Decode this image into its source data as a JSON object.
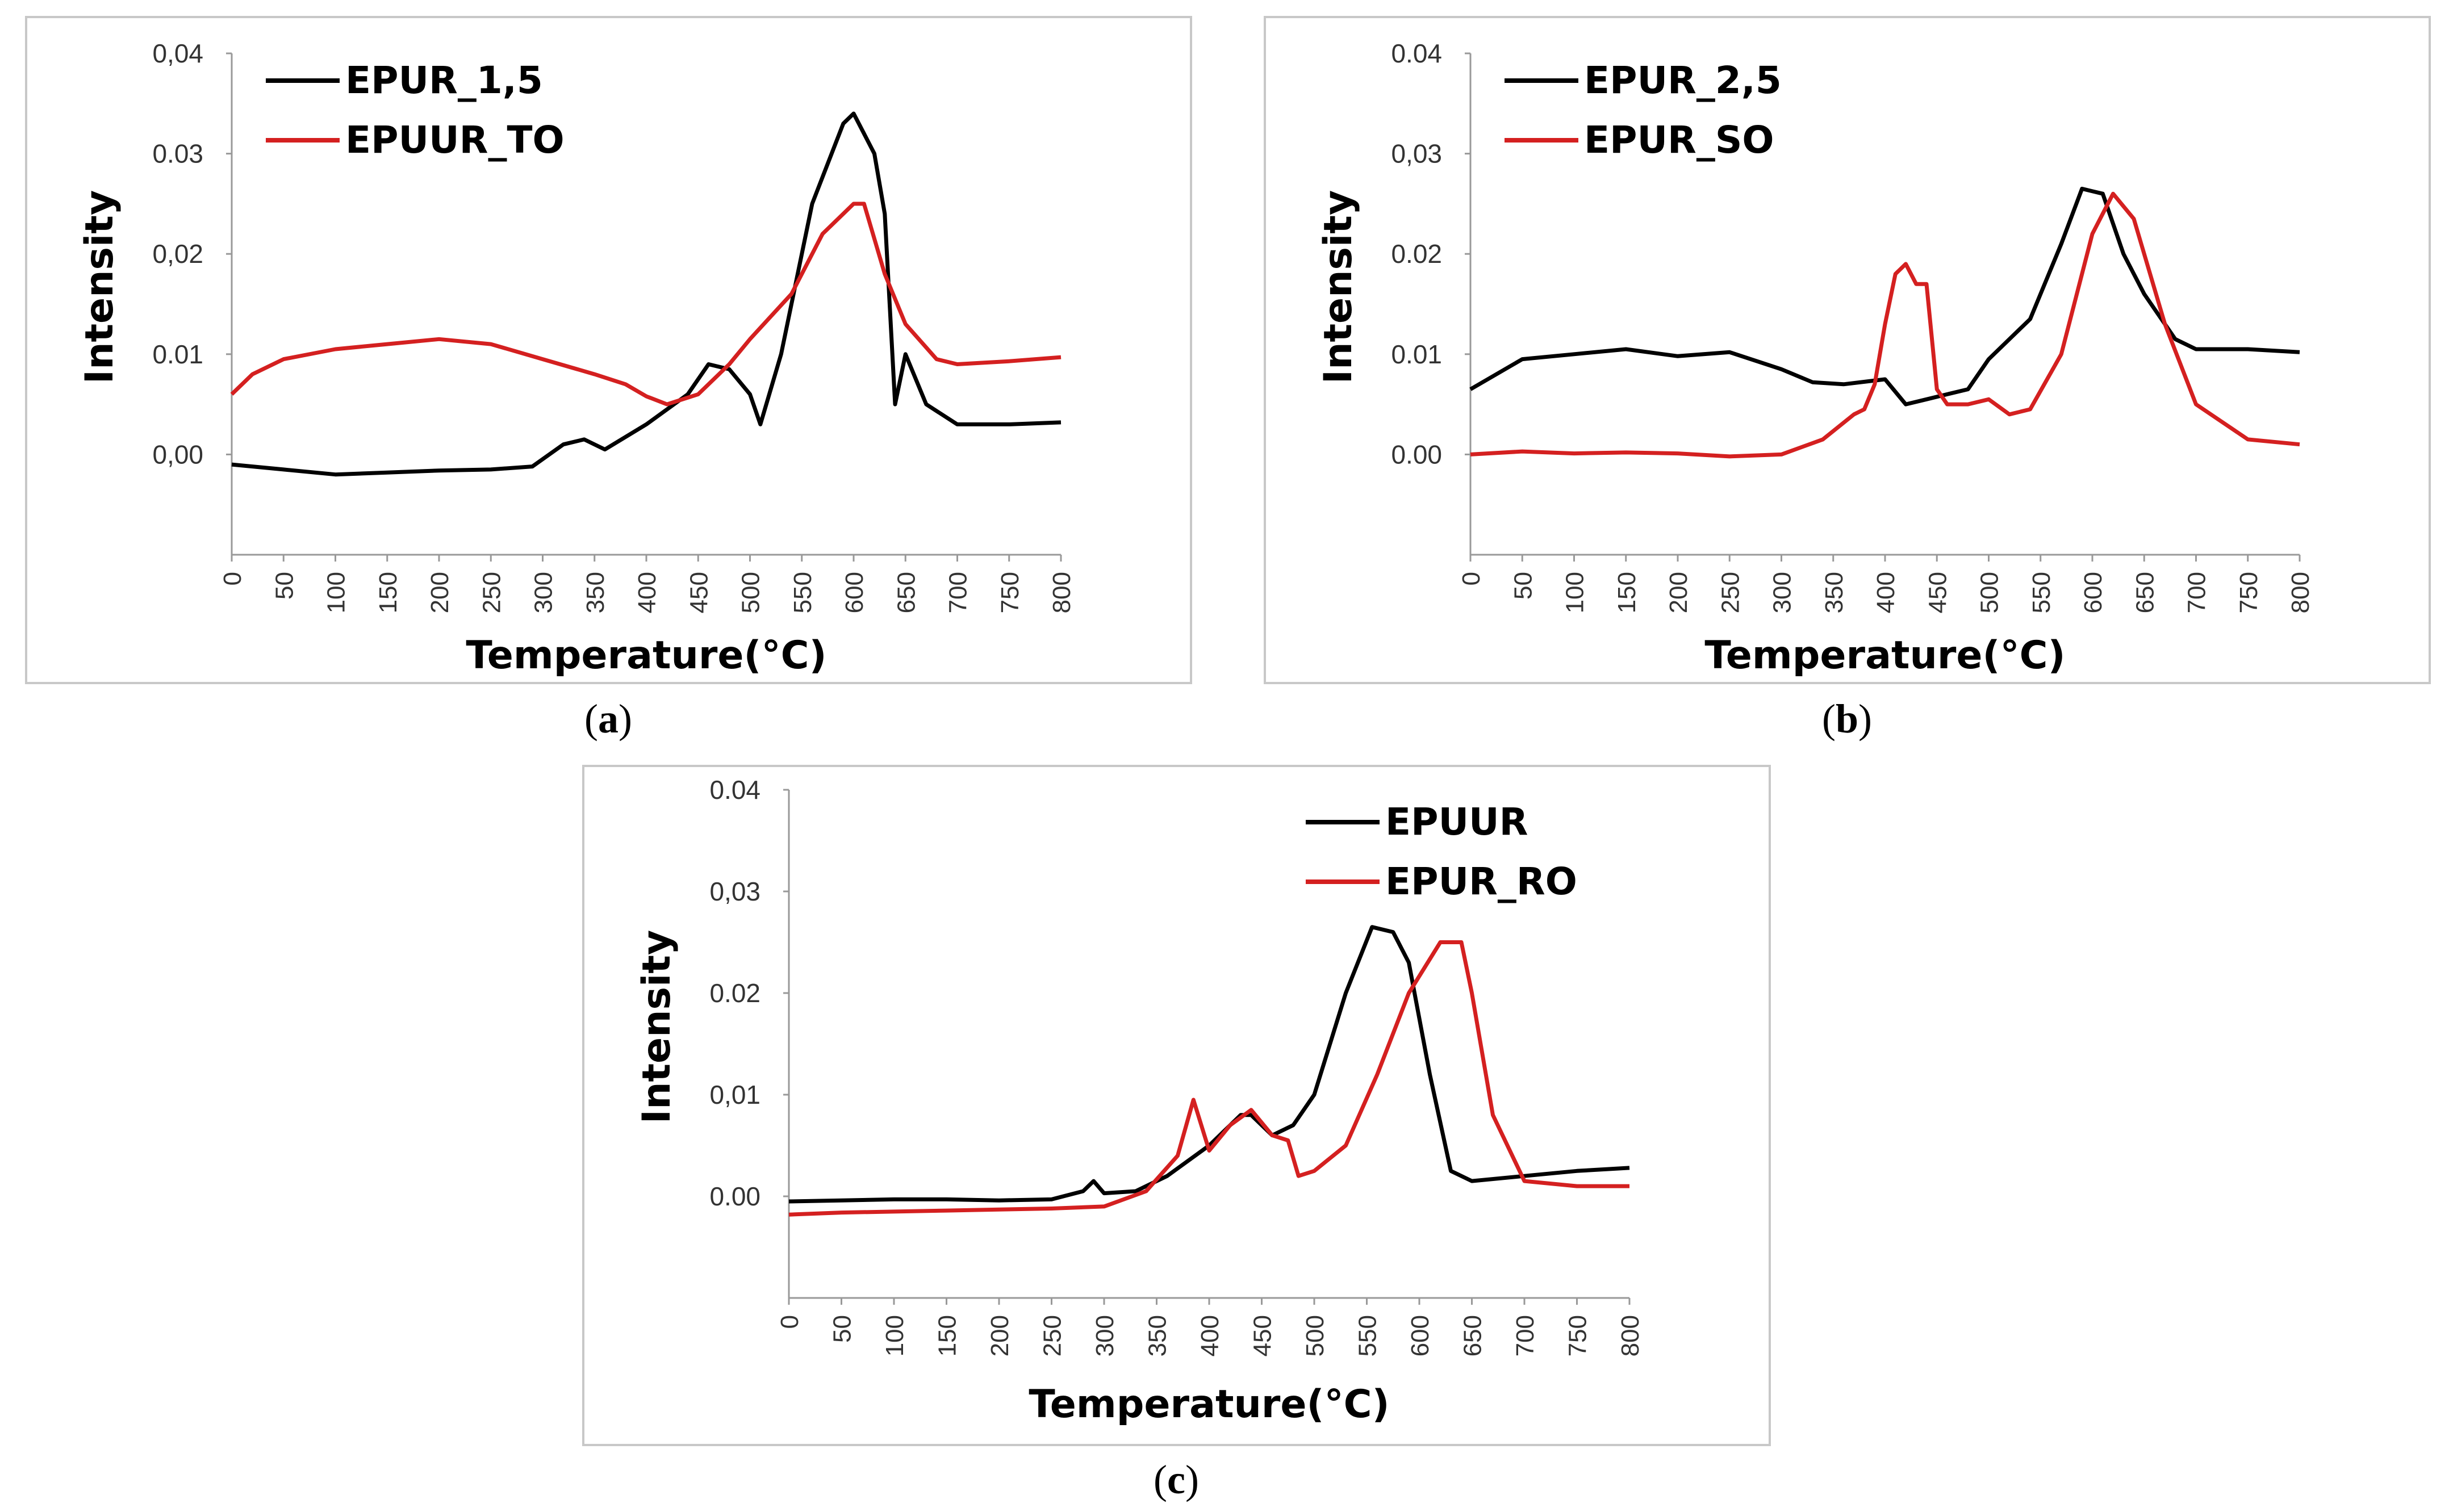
{
  "chart_data": [
    {
      "type": "line",
      "panel_label": "a",
      "xlabel": "Temperature(°C)",
      "ylabel": "Intensity",
      "xlim": [
        0,
        800
      ],
      "ylim": [
        -0.01,
        0.04
      ],
      "x_ticks": [
        0,
        50,
        100,
        150,
        200,
        250,
        300,
        350,
        400,
        450,
        500,
        550,
        600,
        650,
        700,
        750,
        800
      ],
      "y_ticks": [
        0.0,
        0.01,
        0.02,
        0.03,
        0.04
      ],
      "y_tick_labels": [
        "0,00",
        "0.01",
        "0,02",
        "0.03",
        "0,04"
      ],
      "legend_position": "top-left",
      "series": [
        {
          "name": "EPUR_1,5",
          "color": "#000000",
          "x": [
            0,
            50,
            100,
            150,
            200,
            250,
            290,
            320,
            340,
            360,
            400,
            440,
            460,
            480,
            500,
            510,
            530,
            560,
            590,
            600,
            620,
            630,
            640,
            650,
            670,
            700,
            750,
            800
          ],
          "y": [
            -0.001,
            -0.0015,
            -0.002,
            -0.0018,
            -0.0016,
            -0.0015,
            -0.0012,
            0.001,
            0.0015,
            0.0005,
            0.003,
            0.006,
            0.009,
            0.0085,
            0.006,
            0.003,
            0.01,
            0.025,
            0.033,
            0.034,
            0.03,
            0.024,
            0.005,
            0.01,
            0.005,
            0.003,
            0.003,
            0.0032
          ]
        },
        {
          "name": "EPUUR_TO",
          "color": "#d42020",
          "x": [
            0,
            20,
            50,
            100,
            150,
            200,
            250,
            300,
            350,
            380,
            400,
            420,
            450,
            480,
            500,
            540,
            570,
            600,
            610,
            630,
            650,
            680,
            700,
            750,
            800
          ],
          "y": [
            0.006,
            0.008,
            0.0095,
            0.0105,
            0.011,
            0.0115,
            0.011,
            0.0095,
            0.008,
            0.007,
            0.0058,
            0.005,
            0.006,
            0.009,
            0.0115,
            0.016,
            0.022,
            0.025,
            0.025,
            0.018,
            0.013,
            0.0095,
            0.009,
            0.0093,
            0.0097
          ]
        }
      ]
    },
    {
      "type": "line",
      "panel_label": "b",
      "xlabel": "Temperature(°C)",
      "ylabel": "Intensity",
      "xlim": [
        0,
        800
      ],
      "ylim": [
        -0.01,
        0.04
      ],
      "x_ticks": [
        0,
        50,
        100,
        150,
        200,
        250,
        300,
        350,
        400,
        450,
        500,
        550,
        600,
        650,
        700,
        750,
        800
      ],
      "y_ticks": [
        0.0,
        0.01,
        0.02,
        0.03,
        0.04
      ],
      "y_tick_labels": [
        "0.00",
        "0.01",
        "0.02",
        "0,03",
        "0.04"
      ],
      "legend_position": "top-left",
      "series": [
        {
          "name": "EPUR_2,5",
          "color": "#000000",
          "x": [
            0,
            50,
            100,
            150,
            200,
            250,
            300,
            330,
            360,
            400,
            420,
            440,
            460,
            480,
            500,
            540,
            570,
            590,
            610,
            630,
            650,
            680,
            700,
            750,
            800
          ],
          "y": [
            0.0065,
            0.0095,
            0.01,
            0.0105,
            0.0098,
            0.0102,
            0.0085,
            0.0072,
            0.007,
            0.0075,
            0.005,
            0.0055,
            0.006,
            0.0065,
            0.0095,
            0.0135,
            0.021,
            0.0265,
            0.026,
            0.02,
            0.016,
            0.0115,
            0.0105,
            0.0105,
            0.0102
          ]
        },
        {
          "name": "EPUR_SO",
          "color": "#d42020",
          "x": [
            0,
            50,
            100,
            150,
            200,
            250,
            300,
            340,
            370,
            380,
            390,
            400,
            410,
            420,
            430,
            440,
            450,
            460,
            480,
            500,
            520,
            540,
            570,
            600,
            620,
            640,
            670,
            700,
            750,
            800
          ],
          "y": [
            0.0,
            0.0003,
            0.0001,
            0.0002,
            0.0001,
            -0.0002,
            0.0,
            0.0015,
            0.004,
            0.0045,
            0.007,
            0.013,
            0.018,
            0.019,
            0.017,
            0.017,
            0.0065,
            0.005,
            0.005,
            0.0055,
            0.004,
            0.0045,
            0.01,
            0.022,
            0.026,
            0.0235,
            0.013,
            0.005,
            0.0015,
            0.001
          ]
        }
      ]
    },
    {
      "type": "line",
      "panel_label": "c",
      "xlabel": "Temperature(°C)",
      "ylabel": "Intensity",
      "xlim": [
        0,
        800
      ],
      "ylim": [
        -0.01,
        0.04
      ],
      "x_ticks": [
        0,
        50,
        100,
        150,
        200,
        250,
        300,
        350,
        400,
        450,
        500,
        550,
        600,
        650,
        700,
        750,
        800
      ],
      "y_ticks": [
        0.0,
        0.01,
        0.02,
        0.03,
        0.04
      ],
      "y_tick_labels": [
        "0.00",
        "0,01",
        "0.02",
        "0,03",
        "0.04"
      ],
      "legend_position": "top-right",
      "series": [
        {
          "name": "EPUUR",
          "color": "#000000",
          "x": [
            0,
            50,
            100,
            150,
            200,
            250,
            280,
            290,
            300,
            330,
            360,
            400,
            430,
            440,
            460,
            480,
            500,
            530,
            555,
            575,
            590,
            610,
            630,
            650,
            700,
            750,
            800
          ],
          "y": [
            -0.0005,
            -0.0004,
            -0.0003,
            -0.0003,
            -0.0004,
            -0.0003,
            0.0005,
            0.0015,
            0.0003,
            0.0005,
            0.002,
            0.005,
            0.008,
            0.008,
            0.006,
            0.007,
            0.01,
            0.02,
            0.0265,
            0.026,
            0.023,
            0.012,
            0.0025,
            0.0015,
            0.002,
            0.0025,
            0.0028
          ]
        },
        {
          "name": "EPUR_RO",
          "color": "#d42020",
          "x": [
            0,
            50,
            100,
            150,
            200,
            250,
            300,
            340,
            370,
            385,
            400,
            420,
            440,
            460,
            475,
            485,
            500,
            530,
            560,
            590,
            620,
            640,
            650,
            670,
            700,
            750,
            800
          ],
          "y": [
            -0.0018,
            -0.0016,
            -0.0015,
            -0.0014,
            -0.0013,
            -0.0012,
            -0.001,
            0.0005,
            0.004,
            0.0095,
            0.0045,
            0.007,
            0.0085,
            0.006,
            0.0055,
            0.002,
            0.0025,
            0.005,
            0.012,
            0.02,
            0.025,
            0.025,
            0.02,
            0.008,
            0.0015,
            0.001,
            0.001
          ]
        }
      ]
    }
  ],
  "captions": [
    "(a)",
    "(b)",
    "(c)"
  ]
}
